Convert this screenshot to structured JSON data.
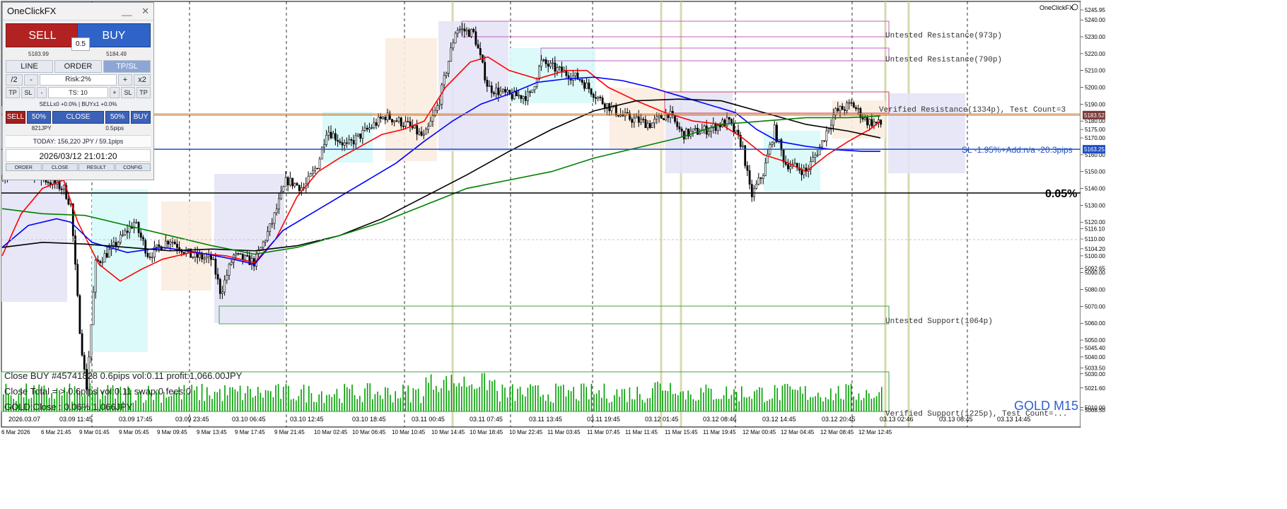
{
  "panel": {
    "title": "OneClickFX",
    "minimize": "__",
    "close": "✕",
    "sell_label": "SELL",
    "buy_label": "BUY",
    "spread": "0.5",
    "sell_price": "5183.99",
    "buy_price": "5184.49",
    "mode_tabs": [
      "LINE",
      "ORDER",
      "TP/SL"
    ],
    "active_mode": "TP/SL",
    "half": "/2",
    "minus": "-",
    "risk": "Risk:2%",
    "plus": "+",
    "double": "x2",
    "tp1": "TP",
    "sl1": "SL",
    "ts": "TS: 10",
    "plus2": "+",
    "sl2": "SL",
    "tp2": "TP",
    "positions": "SELLx0 +0.0% | BUYx1 +0.0%",
    "sell_small": "SELL",
    "half_left": "50%",
    "close_btn": "CLOSE",
    "half_right": "50%",
    "buy_small": "BUY",
    "pnl_left": "821JPY",
    "pnl_right": "0.5pips",
    "today": "TODAY: 156,220 JPY / 59.1pips",
    "datetime": "2026/03/12  21:01:20",
    "bottom_tabs": [
      "ORDER",
      "CLOSE",
      "RESULT",
      "CONFIG"
    ]
  },
  "chart": {
    "brand": "OneClickFX",
    "symbol_label": "GOLD M15",
    "percent_label": "0.05%",
    "sl_label": "SL -1.95%+Add:n/a -20.3pips",
    "zones": [
      "Untested Resistance(973p)",
      "Untested Resistance(790p)",
      "Verified Resistance(1334p), Test Count=3",
      "Untested Support(1064p)",
      "Verified Support(1225p), Test Count=..."
    ],
    "log_lines": [
      "Close BUY #45741828 0.6pips vol:0.11 profit:1,066.00JPY",
      "Close Total = > 0.6pips vol:0.11 swap:0 fees:0",
      "GOLD:Close : 0.06% 1,066JPY"
    ],
    "price_ticks": [
      "5245.95",
      "5240.00",
      "5230.00",
      "5220.00",
      "5210.00",
      "5200.00",
      "5190.00",
      "5180.00",
      "5175.00",
      "5170.00",
      "5160.00",
      "5150.00",
      "5140.00",
      "5130.00",
      "5120.00",
      "5116.10",
      "5110.00",
      "5104.20",
      "5100.00",
      "5092.65",
      "5090.00",
      "5080.00",
      "5070.00",
      "5060.00",
      "5050.00",
      "5045.40",
      "5040.00",
      "5033.50",
      "5030.00",
      "5021.60",
      "5010.00",
      "5008.50"
    ],
    "current_price": "5183.52",
    "sl_price": "5163.25",
    "upper_time_labels": [
      "2026.03.07",
      "03.09 11:45",
      "03.09 17:45",
      "03.09 23:45",
      "03.10 06:45",
      "03.10 12:45",
      "03.10 18:45",
      "03.11 00:45",
      "03.11 07:45",
      "03.11 13:45",
      "03.11 19:45",
      "03.12 01:45",
      "03.12 08:46",
      "03.12 14:45",
      "03.12 20:45",
      "03.13 02:46",
      "03.13 08:45",
      "03.13 14:45"
    ],
    "lower_time_labels": [
      "6 Mar 2026",
      "6 Mar 21:45",
      "9 Mar 01:45",
      "9 Mar 05:45",
      "9 Mar 09:45",
      "9 Mar 13:45",
      "9 Mar 17:45",
      "9 Mar 21:45",
      "10 Mar 02:45",
      "10 Mar 06:45",
      "10 Mar 10:45",
      "10 Mar 14:45",
      "10 Mar 18:45",
      "10 Mar 22:45",
      "11 Mar 03:45",
      "11 Mar 07:45",
      "11 Mar 11:45",
      "11 Mar 15:45",
      "11 Mar 19:45",
      "12 Mar 00:45",
      "12 Mar 04:45",
      "12 Mar 08:45",
      "12 Mar 12:45"
    ],
    "colors": {
      "sma_fast": "#ff0000",
      "sma_mid": "#0000ff",
      "sma_slow": "#000000",
      "sma_long": "#008000",
      "candle": "#000000",
      "volume": "#00a000",
      "resistance_box": "#c060c0",
      "support_box": "#40a040",
      "sl_line": "#1f4fc4",
      "current_line": "#c05000"
    }
  }
}
